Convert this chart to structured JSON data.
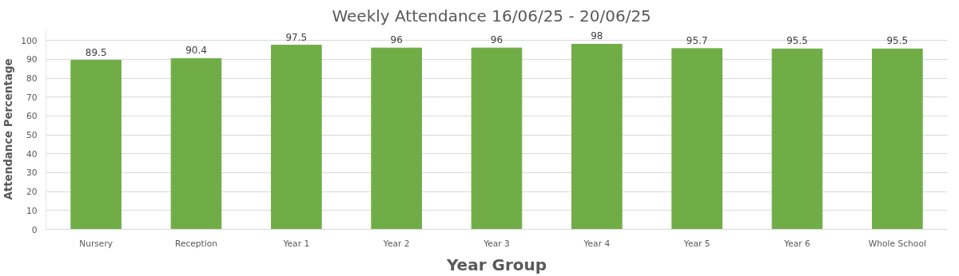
{
  "chart_data": {
    "type": "bar",
    "title": "Weekly Attendance 16/06/25   - 20/06/25",
    "xlabel": "Year Group",
    "ylabel": "Attendance Percentage",
    "categories": [
      "Nursery",
      "Reception",
      "Year 1",
      "Year 2",
      "Year 3",
      "Year 4",
      "Year 5",
      "Year 6",
      "Whole School"
    ],
    "values": [
      89.5,
      90.4,
      97.5,
      96,
      96,
      98,
      95.7,
      95.5,
      95.5
    ],
    "color": "#70ad47",
    "ylim": [
      0,
      106
    ],
    "yticks": [
      0,
      10,
      20,
      30,
      40,
      50,
      60,
      70,
      80,
      90,
      100
    ],
    "grid": "y",
    "data_labels": true
  }
}
